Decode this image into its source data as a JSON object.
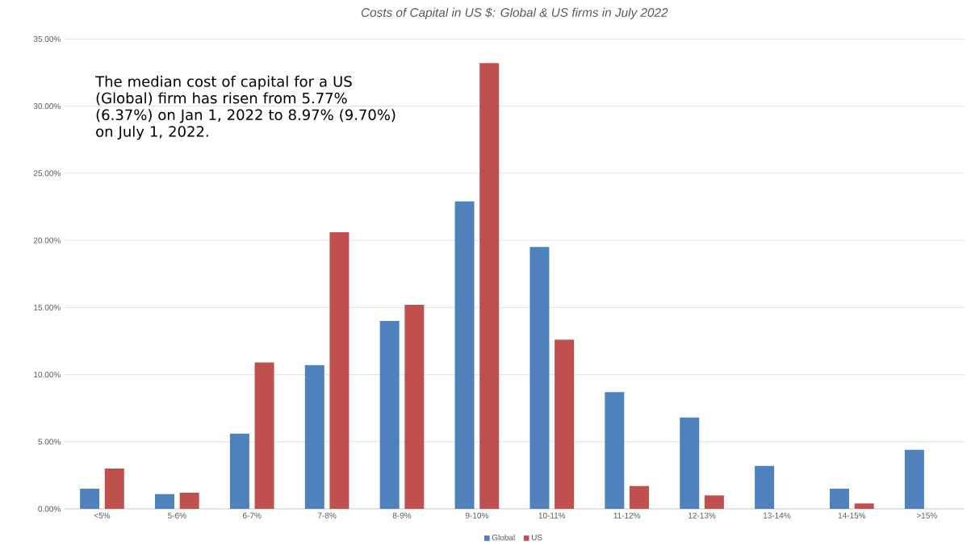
{
  "chart_data": {
    "type": "bar",
    "title": "Costs of Capital in US $: Global & US firms in July 2022",
    "categories": [
      "<5%",
      "5-6%",
      "6-7%",
      "7-8%",
      "8-9%",
      "9-10%",
      "10-11%",
      "11-12%",
      "12-13%",
      "13-14%",
      "14-15%",
      ">15%"
    ],
    "series": [
      {
        "name": "Global",
        "color": "#4f81bd",
        "values": [
          1.5,
          1.1,
          5.6,
          10.7,
          14.0,
          22.9,
          19.5,
          8.7,
          6.8,
          3.2,
          1.5,
          4.4
        ]
      },
      {
        "name": "US",
        "color": "#c0504d",
        "values": [
          3.0,
          1.2,
          10.9,
          20.6,
          15.2,
          33.2,
          12.6,
          1.7,
          1.0,
          0,
          0.4,
          0
        ]
      }
    ],
    "ylim": [
      0,
      35
    ],
    "yticks": [
      {
        "value": 0,
        "label": "0.00%"
      },
      {
        "value": 5,
        "label": "5.00%"
      },
      {
        "value": 10,
        "label": "10.00%"
      },
      {
        "value": 15,
        "label": "15.00%"
      },
      {
        "value": 20,
        "label": "20.00%"
      },
      {
        "value": 25,
        "label": "25.00%"
      },
      {
        "value": 30,
        "label": "30.00%"
      },
      {
        "value": 35,
        "label": "35.00%"
      }
    ],
    "grid": "y",
    "legend": "bottom",
    "annotations": [
      "The median cost of capital for a US (Global) firm has risen from 5.77% (6.37%) on Jan 1, 2022 to 8.97% (9.70%) on July 1, 2022."
    ]
  }
}
